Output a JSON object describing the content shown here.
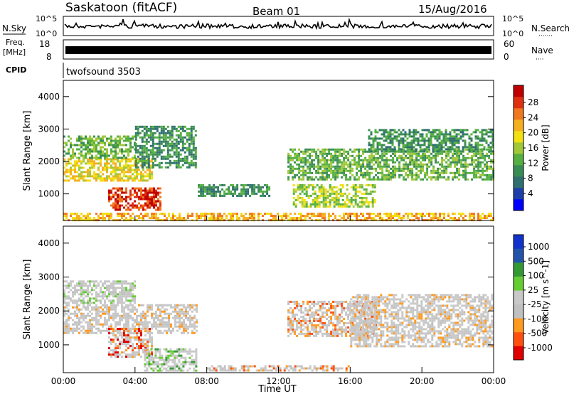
{
  "header": {
    "station": "Saskatoon (fitACF)",
    "beam": "Beam 01",
    "date": "15/Aug/2016"
  },
  "noise_panel": {
    "left_label": "N.Sky",
    "right_label": "N.Search",
    "right_dots": "·······",
    "ticks_left": [
      "10^5",
      "10^0"
    ],
    "ticks_right": [
      "10^5",
      "10^0"
    ]
  },
  "freq_panel": {
    "left_label_1": "Freq.",
    "left_label_2": "[MHz]",
    "right_label": "Nave",
    "right_dots": "····",
    "ticks_left": [
      "18",
      "8"
    ],
    "ticks_right": [
      "60",
      "0"
    ]
  },
  "cpid_panel": {
    "label": "CPID",
    "program": "twofsound 3503"
  },
  "colors": {
    "power": [
      "#0000ff",
      "#1f3fa8",
      "#2f6f6f",
      "#3a8c55",
      "#55b040",
      "#a0c838",
      "#f2e010",
      "#f5b020",
      "#f07820",
      "#e03010",
      "#c00000"
    ],
    "velocity": [
      "#e00000",
      "#ff5010",
      "#ff9a20",
      "#c0c0c0",
      "#c8c8c8",
      "#66cc33",
      "#339933",
      "#2255aa",
      "#1133cc"
    ]
  },
  "chart_data": [
    {
      "type": "heatmap",
      "title": "Power",
      "colorbar_label": "Power [dB]",
      "colorbar_ticks": [
        "28",
        "24",
        "20",
        "16",
        "12",
        "8",
        "4"
      ],
      "ylabel": "Slant Range [km]",
      "yticks": [
        "4000",
        "3000",
        "2000",
        "1000"
      ],
      "ylim": [
        180,
        4500
      ],
      "xlabel": "",
      "xticks": [],
      "xlim": [
        0,
        24
      ],
      "bands": [
        {
          "t0": 0.0,
          "t1": 5.0,
          "r0": 1350,
          "r1": 2100,
          "level": 6
        },
        {
          "t0": 0.0,
          "t1": 4.0,
          "r0": 2100,
          "r1": 2800,
          "level": 4
        },
        {
          "t0": 2.5,
          "t1": 5.5,
          "r0": 500,
          "r1": 1200,
          "level": 9
        },
        {
          "t0": 4.0,
          "t1": 7.5,
          "r0": 1800,
          "r1": 3100,
          "level": 3
        },
        {
          "t0": 7.5,
          "t1": 11.5,
          "r0": 900,
          "r1": 1300,
          "level": 3
        },
        {
          "t0": 12.5,
          "t1": 24.0,
          "r0": 1400,
          "r1": 2400,
          "level": 4
        },
        {
          "t0": 12.8,
          "t1": 17.5,
          "r0": 600,
          "r1": 1300,
          "level": 5
        },
        {
          "t0": 17.0,
          "t1": 24.0,
          "r0": 2300,
          "r1": 3000,
          "level": 3
        },
        {
          "t0": 0.0,
          "t1": 24.0,
          "r0": 180,
          "r1": 420,
          "level": 7
        }
      ]
    },
    {
      "type": "heatmap",
      "title": "Velocity",
      "colorbar_label": "Velocity [m s^-1]",
      "colorbar_ticks": [
        "1000",
        "500",
        "100",
        "25",
        "-25",
        "-100",
        "-500",
        "-1000"
      ],
      "ylabel": "Slant Range [km]",
      "yticks": [
        "4000",
        "3000",
        "2000",
        "1000"
      ],
      "ylim": [
        180,
        4500
      ],
      "xlabel": "Time UT",
      "xticks": [
        "00:00",
        "04:00",
        "08:00",
        "12:00",
        "16:00",
        "20:00",
        "00:00"
      ],
      "xlim": [
        0,
        24
      ],
      "bands": [
        {
          "t0": 0.0,
          "t1": 7.5,
          "r0": 1300,
          "r1": 2200,
          "level": 3
        },
        {
          "t0": 0.0,
          "t1": 4.0,
          "r0": 2200,
          "r1": 2900,
          "level": 4
        },
        {
          "t0": 2.5,
          "t1": 5.0,
          "r0": 600,
          "r1": 1500,
          "level": 1
        },
        {
          "t0": 4.5,
          "t1": 7.5,
          "r0": 200,
          "r1": 900,
          "level": 5
        },
        {
          "t0": 12.5,
          "t1": 17.5,
          "r0": 1200,
          "r1": 2300,
          "level": 2
        },
        {
          "t0": 16.0,
          "t1": 24.0,
          "r0": 900,
          "r1": 2500,
          "level": 3
        },
        {
          "t0": 8.0,
          "t1": 16.0,
          "r0": 180,
          "r1": 400,
          "level": 2
        }
      ]
    }
  ]
}
